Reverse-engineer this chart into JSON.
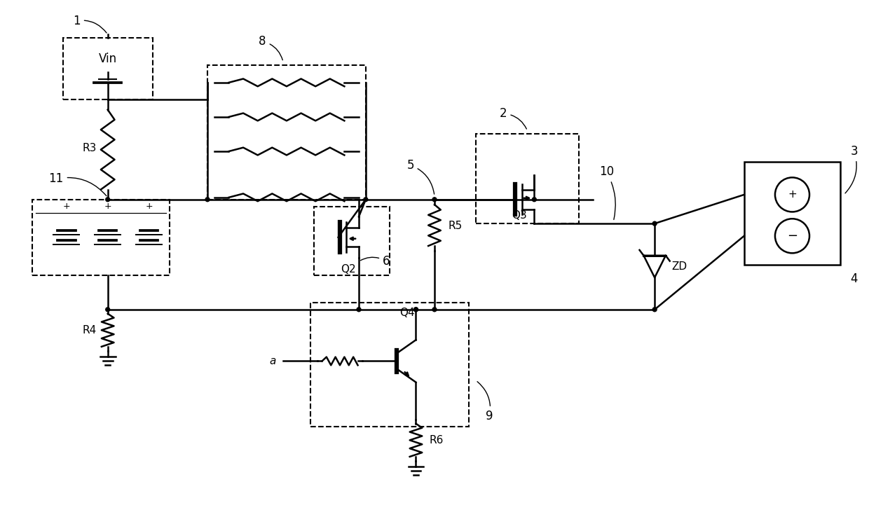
{
  "bg_color": "#ffffff",
  "line_color": "#000000",
  "lw": 1.8,
  "dlw": 1.5,
  "fig_width": 12.4,
  "fig_height": 7.58,
  "xlim": [
    0,
    124
  ],
  "ylim": [
    0,
    75.8
  ]
}
